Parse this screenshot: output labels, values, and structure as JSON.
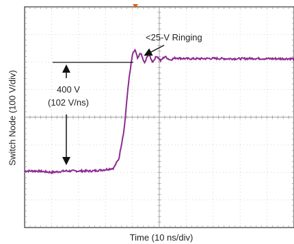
{
  "chart_data": {
    "type": "line",
    "title": "",
    "xlabel": "Time (10 ns/div)",
    "ylabel": "Switch Node (100 V/div)",
    "grid": true,
    "x_divisions": 10,
    "y_divisions": 8,
    "xlim": [
      0,
      10
    ],
    "ylim": [
      0,
      8
    ],
    "trace_color": "#8b2a8f",
    "annotations": [
      {
        "text": "<25-V Ringing",
        "points_to": "overshoot ringing after rising edge"
      },
      {
        "text": "400 V",
        "refers_to": "voltage step height"
      },
      {
        "text": "(102 V/ns)",
        "refers_to": "slew rate of rising edge"
      }
    ],
    "series": [
      {
        "name": "",
        "x": [
          0.0,
          0.5,
          1.0,
          1.5,
          2.0,
          2.5,
          3.0,
          3.3,
          3.5,
          3.7,
          3.85,
          4.0,
          4.1,
          4.2,
          4.3,
          4.45,
          4.6,
          4.75,
          4.9,
          5.05,
          5.2,
          5.4,
          5.6,
          6.0,
          6.5,
          7.0,
          7.5,
          8.0,
          8.5,
          9.0,
          9.5,
          10.0
        ],
        "y": [
          2.05,
          2.05,
          2.0,
          2.05,
          2.05,
          2.05,
          2.1,
          2.15,
          2.5,
          3.6,
          5.2,
          6.25,
          6.45,
          6.1,
          6.35,
          5.95,
          6.3,
          6.0,
          6.22,
          6.05,
          6.2,
          6.08,
          6.15,
          6.12,
          6.12,
          6.13,
          6.12,
          6.12,
          6.13,
          6.12,
          6.12,
          6.12
        ]
      }
    ]
  }
}
